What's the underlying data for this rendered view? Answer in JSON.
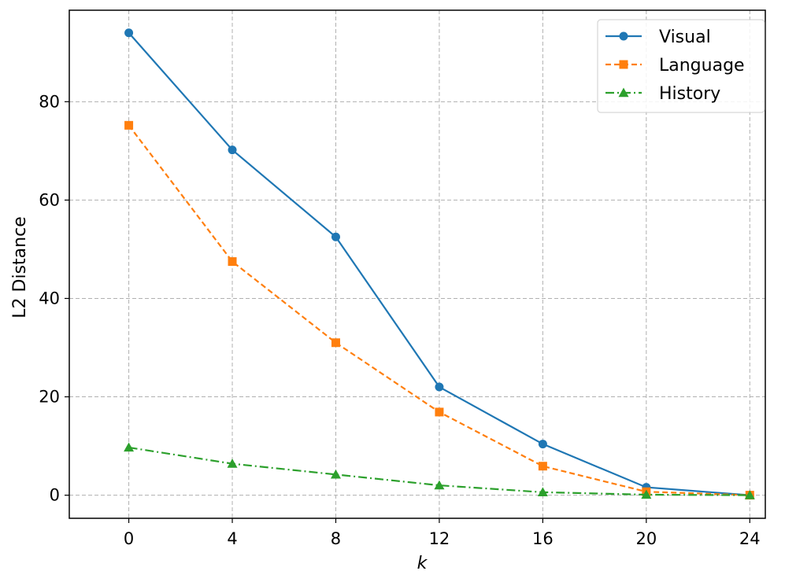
{
  "chart_data": {
    "type": "line",
    "xlabel": "k",
    "ylabel": "L2 Distance",
    "x": [
      0,
      4,
      8,
      12,
      16,
      20,
      24
    ],
    "xticks": [
      0,
      4,
      8,
      12,
      16,
      20,
      24
    ],
    "yticks": [
      0,
      20,
      40,
      60,
      80
    ],
    "xlim": [
      -2.3,
      24.6
    ],
    "ylim": [
      -4.7,
      98.6
    ],
    "grid": true,
    "legend_position": "top-right",
    "series": [
      {
        "name": "Visual",
        "values": [
          94.0,
          70.2,
          52.5,
          22.0,
          10.4,
          1.6,
          0.0
        ],
        "color": "#1f77b4",
        "marker": "circle",
        "linestyle": "solid"
      },
      {
        "name": "Language",
        "values": [
          75.2,
          47.5,
          31.0,
          16.9,
          5.9,
          0.7,
          0.0
        ],
        "color": "#ff7f0e",
        "marker": "square",
        "linestyle": "dashed"
      },
      {
        "name": "History",
        "values": [
          9.7,
          6.4,
          4.2,
          2.0,
          0.6,
          0.1,
          0.0
        ],
        "color": "#2ca02c",
        "marker": "triangle",
        "linestyle": "dashdot"
      }
    ]
  }
}
